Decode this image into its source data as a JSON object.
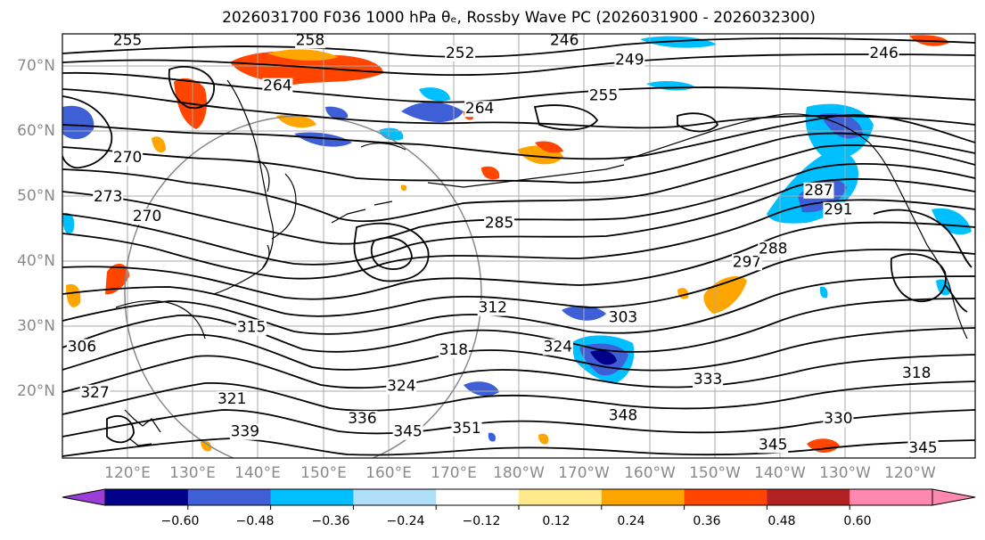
{
  "title": "2026031700 F036 1000 hPa θₑ, Rossby Wave PC (2026031900 - 2026032300)",
  "latitude_labels": [
    "70°N",
    "60°N",
    "50°N",
    "40°N",
    "30°N",
    "20°N"
  ],
  "latitude_values": [
    70,
    60,
    50,
    40,
    30,
    20
  ],
  "longitude_labels": [
    "120°E",
    "130°E",
    "140°E",
    "150°E",
    "160°E",
    "170°E",
    "180°W",
    "170°W",
    "160°W",
    "150°W",
    "140°W",
    "130°W",
    "120°W"
  ],
  "map_extent": {
    "lon_min": 110,
    "lon_max": 250,
    "lat_min": 10,
    "lat_max": 75
  },
  "contour_labels": [
    {
      "text": "255",
      "lon": 120,
      "lat": 74
    },
    {
      "text": "258",
      "lon": 148,
      "lat": 74
    },
    {
      "text": "246",
      "lon": 187,
      "lat": 74
    },
    {
      "text": "252",
      "lon": 171,
      "lat": 72
    },
    {
      "text": "249",
      "lon": 197,
      "lat": 71
    },
    {
      "text": "246",
      "lon": 236,
      "lat": 72
    },
    {
      "text": "264",
      "lon": 143,
      "lat": 67
    },
    {
      "text": "255",
      "lon": 193,
      "lat": 65.5
    },
    {
      "text": "264",
      "lon": 174,
      "lat": 63.5
    },
    {
      "text": "270",
      "lon": 120,
      "lat": 56
    },
    {
      "text": "273",
      "lon": 117,
      "lat": 50
    },
    {
      "text": "270",
      "lon": 123,
      "lat": 47
    },
    {
      "text": "285",
      "lon": 177,
      "lat": 46
    },
    {
      "text": "287",
      "lon": 226,
      "lat": 51
    },
    {
      "text": "291",
      "lon": 229,
      "lat": 48
    },
    {
      "text": "297",
      "lon": 215,
      "lat": 40
    },
    {
      "text": "288",
      "lon": 219,
      "lat": 42
    },
    {
      "text": "312",
      "lon": 176,
      "lat": 33
    },
    {
      "text": "303",
      "lon": 196,
      "lat": 31.5
    },
    {
      "text": "315",
      "lon": 139,
      "lat": 30
    },
    {
      "text": "306",
      "lon": 113,
      "lat": 27
    },
    {
      "text": "318",
      "lon": 170,
      "lat": 26.5
    },
    {
      "text": "324",
      "lon": 186,
      "lat": 27
    },
    {
      "text": "324",
      "lon": 162,
      "lat": 21
    },
    {
      "text": "333",
      "lon": 209,
      "lat": 22
    },
    {
      "text": "318",
      "lon": 241,
      "lat": 23
    },
    {
      "text": "321",
      "lon": 136,
      "lat": 19
    },
    {
      "text": "336",
      "lon": 156,
      "lat": 16
    },
    {
      "text": "348",
      "lon": 196,
      "lat": 16.5
    },
    {
      "text": "330",
      "lon": 229,
      "lat": 16
    },
    {
      "text": "339",
      "lon": 138,
      "lat": 14
    },
    {
      "text": "345",
      "lon": 163,
      "lat": 14
    },
    {
      "text": "351",
      "lon": 172,
      "lat": 14.5
    },
    {
      "text": "345",
      "lon": 219,
      "lat": 12
    },
    {
      "text": "345",
      "lon": 242,
      "lat": 11.5
    },
    {
      "text": "327",
      "lon": 115,
      "lat": 20
    }
  ],
  "colorbar": {
    "ticks": [
      "−0.60",
      "−0.48",
      "−0.36",
      "−0.24",
      "−0.12",
      "0.12",
      "0.24",
      "0.36",
      "0.48",
      "0.60"
    ],
    "colors": [
      "#9b3dd6",
      "#00008b",
      "#3f5fd6",
      "#00bfff",
      "#b0e0f8",
      "#ffffff",
      "#ffe98a",
      "#ffa500",
      "#ff4500",
      "#b22222",
      "#ff88b0",
      "#ff88b0"
    ]
  }
}
